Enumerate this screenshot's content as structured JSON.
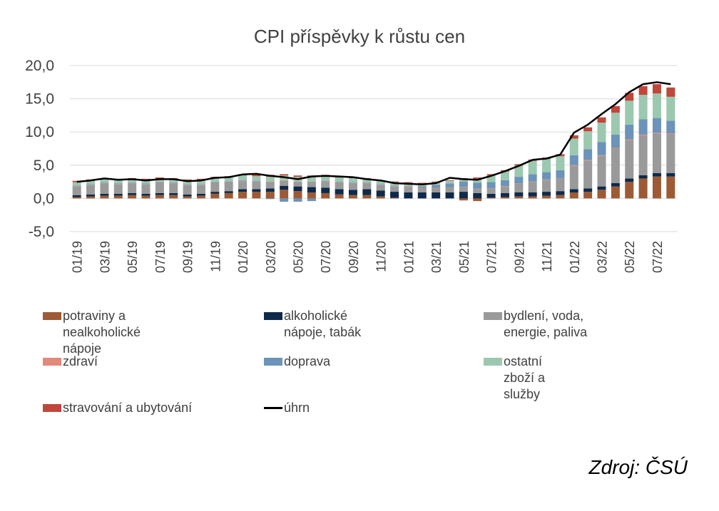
{
  "chart_data": {
    "type": "bar",
    "title": "CPI příspěvky k růstu cen",
    "xlabel": "",
    "ylabel": "",
    "ylim": [
      -5,
      20
    ],
    "yticks": [
      "20,0",
      "15,0",
      "10,0",
      "5,0",
      "0,0",
      "-5,0"
    ],
    "ytick_values": [
      20,
      15,
      10,
      5,
      0,
      -5
    ],
    "grid": true,
    "legend_position": "bottom",
    "categories": [
      "01/19",
      "02/19",
      "03/19",
      "04/19",
      "05/19",
      "06/19",
      "07/19",
      "08/19",
      "09/19",
      "10/19",
      "11/19",
      "12/19",
      "01/20",
      "02/20",
      "03/20",
      "04/20",
      "05/20",
      "06/20",
      "07/20",
      "08/20",
      "09/20",
      "10/20",
      "11/20",
      "12/20",
      "01/21",
      "02/21",
      "03/21",
      "04/21",
      "05/21",
      "06/21",
      "07/21",
      "08/21",
      "09/21",
      "10/21",
      "11/21",
      "12/21",
      "01/22",
      "02/22",
      "03/22",
      "04/22",
      "05/22",
      "06/22",
      "07/22",
      "08/22"
    ],
    "xtick_labels": [
      "01/19",
      "03/19",
      "05/19",
      "07/19",
      "09/19",
      "11/19",
      "01/20",
      "03/20",
      "05/20",
      "07/20",
      "09/20",
      "11/20",
      "01/21",
      "03/21",
      "05/21",
      "07/21",
      "09/21",
      "11/21",
      "01/22",
      "03/22",
      "05/22",
      "07/22"
    ],
    "series": [
      {
        "name": "potraviny a nealkoholické nápoje",
        "kind": "bar",
        "color": "#9C5B35",
        "values": [
          0.2,
          0.3,
          0.4,
          0.4,
          0.5,
          0.4,
          0.5,
          0.5,
          0.3,
          0.4,
          0.7,
          0.8,
          1.0,
          1.0,
          1.0,
          1.3,
          1.1,
          0.9,
          0.8,
          0.6,
          0.5,
          0.5,
          0.3,
          0.1,
          0.0,
          0.0,
          0.0,
          0.0,
          -0.3,
          -0.4,
          0.1,
          0.2,
          0.3,
          0.3,
          0.4,
          0.5,
          0.9,
          1.0,
          1.3,
          1.8,
          2.5,
          3.0,
          3.3,
          3.3
        ]
      },
      {
        "name": "alkoholické nápoje, tabák",
        "kind": "bar",
        "color": "#0E2A4A",
        "values": [
          0.3,
          0.3,
          0.3,
          0.3,
          0.3,
          0.3,
          0.3,
          0.3,
          0.3,
          0.3,
          0.3,
          0.3,
          0.4,
          0.4,
          0.5,
          0.6,
          0.7,
          0.8,
          0.8,
          0.8,
          0.8,
          0.9,
          0.9,
          0.9,
          0.9,
          0.9,
          0.9,
          0.9,
          1.0,
          0.8,
          0.6,
          0.6,
          0.6,
          0.6,
          0.6,
          0.6,
          0.5,
          0.5,
          0.5,
          0.5,
          0.5,
          0.5,
          0.5,
          0.5
        ]
      },
      {
        "name": "bydlení, voda, energie, paliva",
        "kind": "bar",
        "color": "#9A9A9A",
        "values": [
          1.3,
          1.4,
          1.5,
          1.4,
          1.4,
          1.4,
          1.5,
          1.4,
          1.4,
          1.3,
          1.3,
          1.3,
          1.2,
          1.1,
          1.0,
          0.8,
          0.7,
          0.8,
          0.9,
          0.9,
          0.9,
          0.8,
          0.8,
          0.8,
          0.8,
          0.7,
          0.7,
          0.7,
          0.7,
          0.6,
          0.8,
          1.0,
          1.3,
          1.6,
          1.8,
          1.9,
          3.5,
          4.2,
          4.6,
          5.2,
          5.8,
          6.0,
          6.0,
          5.9
        ]
      },
      {
        "name": "zdraví",
        "kind": "bar",
        "color": "#E2897A",
        "values": [
          0.05,
          0.05,
          0.05,
          0.05,
          0.05,
          0.05,
          0.05,
          0.05,
          0.05,
          0.05,
          0.05,
          0.05,
          0.05,
          0.05,
          0.05,
          0.05,
          0.05,
          0.05,
          0.05,
          0.05,
          0.05,
          0.05,
          0.05,
          0.05,
          0.05,
          0.05,
          0.05,
          0.05,
          0.05,
          0.05,
          0.05,
          0.05,
          0.05,
          0.05,
          0.05,
          0.05,
          0.1,
          0.1,
          0.1,
          0.1,
          0.1,
          0.1,
          0.1,
          0.1
        ]
      },
      {
        "name": "doprava",
        "kind": "bar",
        "color": "#6C93B8",
        "values": [
          0.1,
          0.1,
          0.1,
          0.1,
          0.1,
          0.1,
          0.1,
          0.1,
          0.1,
          0.1,
          0.1,
          0.1,
          0.1,
          0.1,
          -0.1,
          -0.5,
          -0.5,
          -0.4,
          0.1,
          0.1,
          0.1,
          0.1,
          0.1,
          0.1,
          0.1,
          0.2,
          0.4,
          0.6,
          0.8,
          0.9,
          0.9,
          0.9,
          1.0,
          1.1,
          1.1,
          1.2,
          1.5,
          1.6,
          2.0,
          2.0,
          2.2,
          2.3,
          2.2,
          1.9
        ]
      },
      {
        "name": "ostatní zboží a služby",
        "kind": "bar",
        "color": "#9CC8B0",
        "values": [
          0.5,
          0.5,
          0.5,
          0.5,
          0.5,
          0.5,
          0.5,
          0.5,
          0.5,
          0.6,
          0.6,
          0.6,
          0.7,
          0.7,
          0.7,
          0.7,
          0.7,
          0.7,
          0.7,
          0.7,
          0.7,
          0.6,
          0.5,
          0.5,
          0.5,
          0.4,
          0.4,
          0.4,
          0.4,
          0.6,
          1.0,
          1.3,
          1.7,
          2.0,
          2.0,
          2.1,
          2.5,
          2.7,
          2.9,
          3.3,
          3.6,
          3.7,
          3.7,
          3.6
        ]
      },
      {
        "name": "stravování a ubytování",
        "kind": "bar",
        "color": "#C0473B",
        "values": [
          0.2,
          0.2,
          0.2,
          0.2,
          0.2,
          0.2,
          0.2,
          0.2,
          0.2,
          0.2,
          0.2,
          0.2,
          0.2,
          0.2,
          0.3,
          0.2,
          0.2,
          0.2,
          0.2,
          0.2,
          0.2,
          0.1,
          0.1,
          0.1,
          0.1,
          0.1,
          0.1,
          0.1,
          0.1,
          0.2,
          0.2,
          0.2,
          0.2,
          0.2,
          0.2,
          0.3,
          0.5,
          0.6,
          0.8,
          1.0,
          1.2,
          1.3,
          1.4,
          1.4
        ]
      },
      {
        "name": "úhrn",
        "kind": "line",
        "color": "#000000",
        "values": [
          2.5,
          2.7,
          3.0,
          2.8,
          2.9,
          2.7,
          2.9,
          2.9,
          2.6,
          2.7,
          3.1,
          3.2,
          3.6,
          3.7,
          3.4,
          3.2,
          2.9,
          3.3,
          3.4,
          3.3,
          3.2,
          2.9,
          2.7,
          2.3,
          2.2,
          2.1,
          2.3,
          3.1,
          2.9,
          2.8,
          3.4,
          4.1,
          4.9,
          5.8,
          6.0,
          6.6,
          9.9,
          11.1,
          12.7,
          14.2,
          16.0,
          17.2,
          17.5,
          17.2
        ]
      }
    ]
  },
  "legend": {
    "items": [
      {
        "label": "potraviny a nealkoholické nápoje",
        "color": "#9C5B35",
        "kind": "bar"
      },
      {
        "label": "alkoholické nápoje, tabák",
        "color": "#0E2A4A",
        "kind": "bar"
      },
      {
        "label": "bydlení, voda, energie, paliva",
        "color": "#9A9A9A",
        "kind": "bar"
      },
      {
        "label": "zdraví",
        "color": "#E2897A",
        "kind": "bar"
      },
      {
        "label": "doprava",
        "color": "#6C93B8",
        "kind": "bar"
      },
      {
        "label": "ostatní zboží a služby",
        "color": "#9CC8B0",
        "kind": "bar"
      },
      {
        "label": "stravování a ubytování",
        "color": "#C0473B",
        "kind": "bar"
      },
      {
        "label": "úhrn",
        "color": "#000000",
        "kind": "line"
      }
    ]
  },
  "source": "Zdroj: ČSÚ"
}
